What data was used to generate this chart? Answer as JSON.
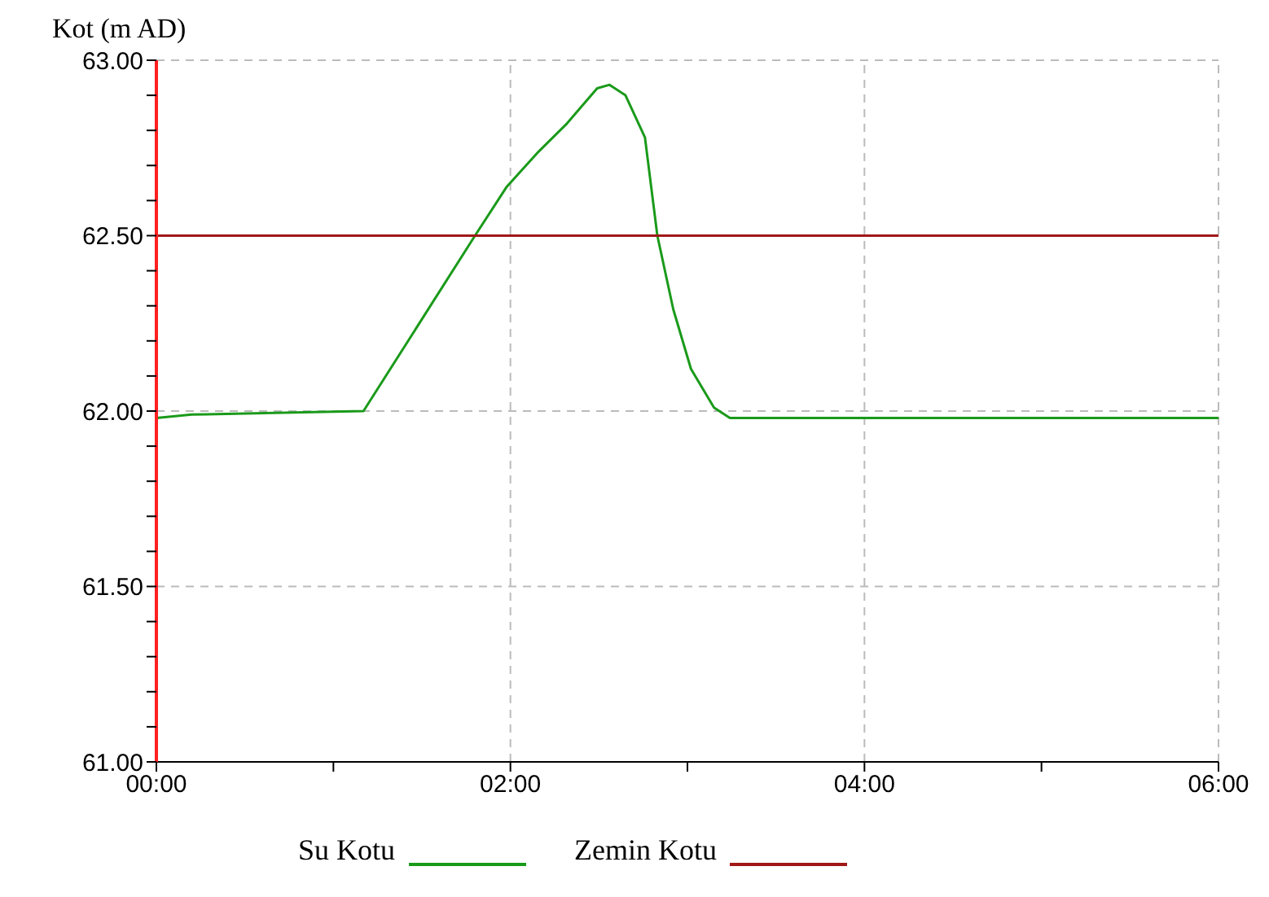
{
  "chart_data": {
    "type": "line",
    "ylabel": "Kot (m AD)",
    "xlim": [
      0,
      6
    ],
    "ylim": [
      61,
      63
    ],
    "xticks": [
      {
        "value": 0,
        "label": "00:00"
      },
      {
        "value": 1,
        "label": null
      },
      {
        "value": 2,
        "label": "02:00"
      },
      {
        "value": 3,
        "label": null
      },
      {
        "value": 4,
        "label": "04:00"
      },
      {
        "value": 5,
        "label": null
      },
      {
        "value": 6,
        "label": "06:00"
      }
    ],
    "yticks": [
      {
        "value": 61,
        "label": "61.00"
      },
      {
        "value": 61.1,
        "label": null
      },
      {
        "value": 61.2,
        "label": null
      },
      {
        "value": 61.3,
        "label": null
      },
      {
        "value": 61.4,
        "label": null
      },
      {
        "value": 61.5,
        "label": "61.50"
      },
      {
        "value": 61.6,
        "label": null
      },
      {
        "value": 61.7,
        "label": null
      },
      {
        "value": 61.8,
        "label": null
      },
      {
        "value": 61.9,
        "label": null
      },
      {
        "value": 62,
        "label": "62.00"
      },
      {
        "value": 62.1,
        "label": null
      },
      {
        "value": 62.2,
        "label": null
      },
      {
        "value": 62.3,
        "label": null
      },
      {
        "value": 62.4,
        "label": null
      },
      {
        "value": 62.5,
        "label": "62.50"
      },
      {
        "value": 62.6,
        "label": null
      },
      {
        "value": 62.7,
        "label": null
      },
      {
        "value": 62.8,
        "label": null
      },
      {
        "value": 62.9,
        "label": null
      },
      {
        "value": 63,
        "label": "63.00"
      }
    ],
    "grid": true,
    "legend": "bottom",
    "marker": "none",
    "line_style": "solid",
    "series": [
      {
        "name": "Su Kotu",
        "color": "#1a9a1a",
        "x": [
          0,
          0.2,
          1.17,
          1.8,
          1.98,
          2.16,
          2.32,
          2.49,
          2.56,
          2.65,
          2.76,
          2.83,
          2.92,
          3.02,
          3.15,
          3.24,
          6
        ],
        "values": [
          61.98,
          61.99,
          62.0,
          62.5,
          62.64,
          62.74,
          62.82,
          62.92,
          62.93,
          62.9,
          62.78,
          62.5,
          62.29,
          62.12,
          62.01,
          61.98,
          61.98
        ]
      },
      {
        "name": "Zemin Kotu",
        "color": "#a01818",
        "x": [
          0,
          6
        ],
        "values": [
          62.5,
          62.5
        ]
      }
    ]
  }
}
